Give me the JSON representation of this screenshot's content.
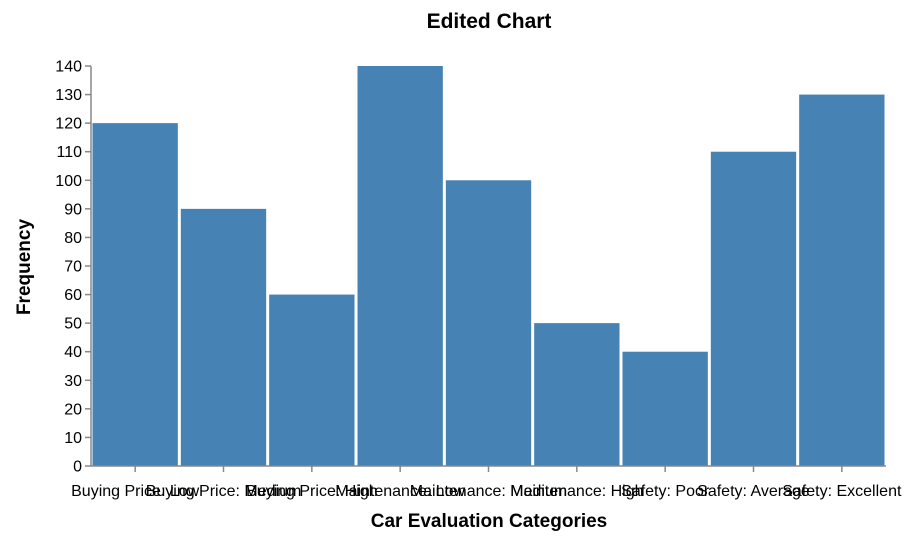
{
  "chart_data": {
    "type": "bar",
    "title": "Edited Chart",
    "xlabel": "Car Evaluation Categories",
    "ylabel": "Frequency",
    "categories": [
      "Buying Price: Low",
      "Buying Price: Medium",
      "Buying Price: High",
      "Maintenance: Low",
      "Maintenance: Medium",
      "Maintenance: High",
      "Safety: Poor",
      "Safety: Average",
      "Safety: Excellent"
    ],
    "values": [
      120,
      90,
      60,
      140,
      100,
      50,
      40,
      110,
      130
    ],
    "ylim": [
      0,
      140
    ],
    "yticks": [
      0,
      10,
      20,
      30,
      40,
      50,
      60,
      70,
      80,
      90,
      100,
      110,
      120,
      130,
      140
    ],
    "bar_color": "#4682b4",
    "grid": false
  }
}
